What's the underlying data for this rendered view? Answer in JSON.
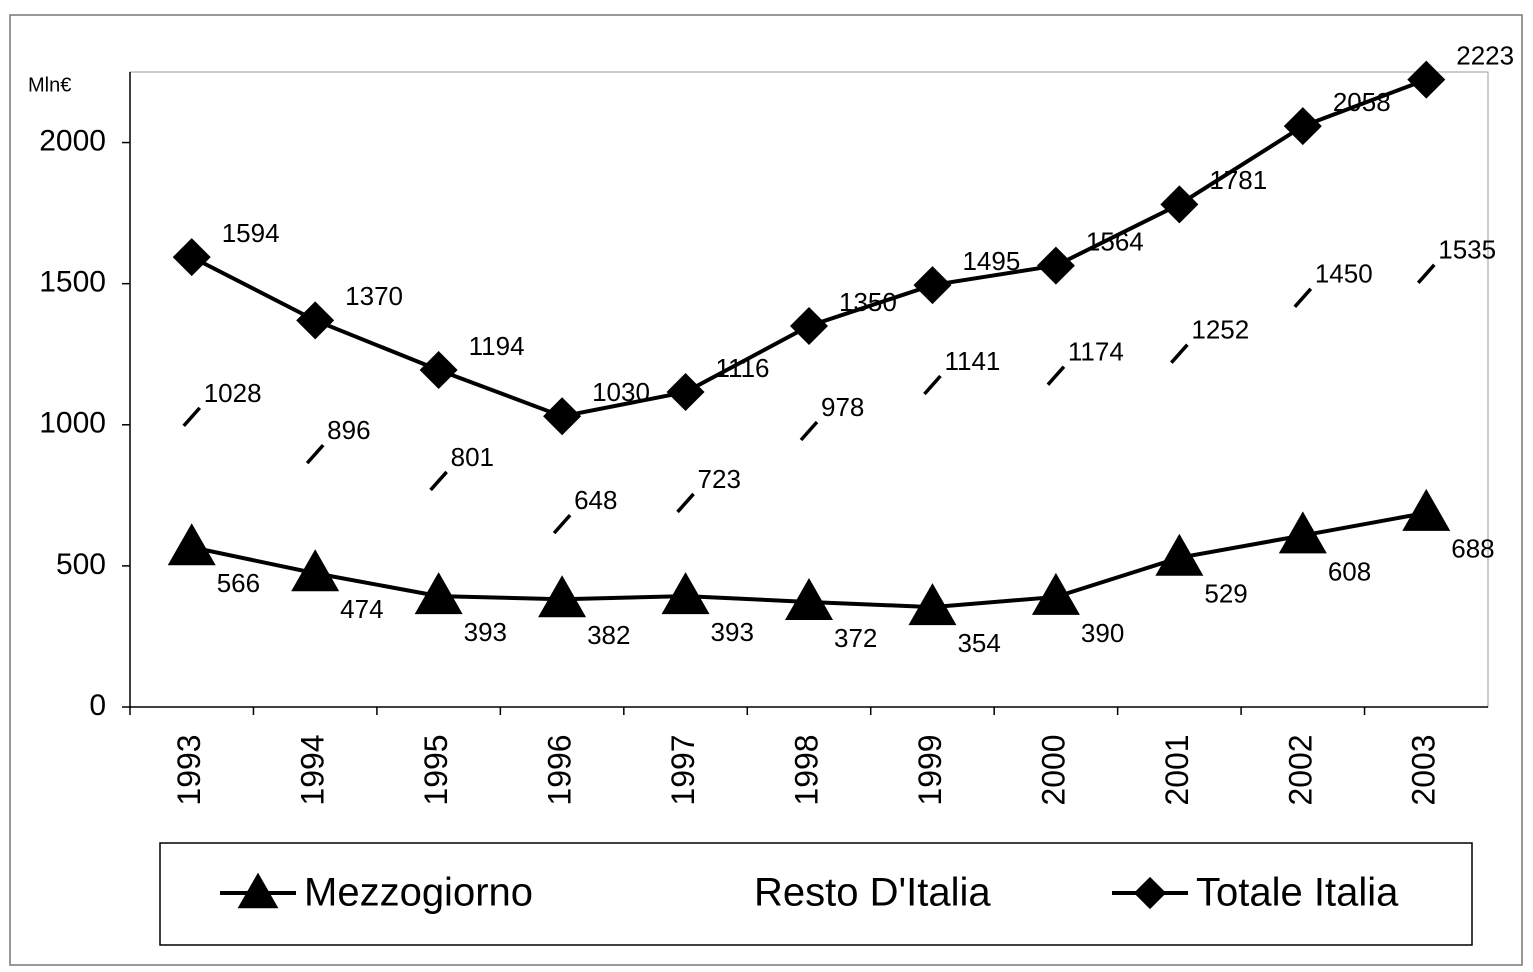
{
  "chart_data": {
    "type": "line",
    "y_label": "Mln€",
    "categories": [
      "1993",
      "1994",
      "1995",
      "1996",
      "1997",
      "1998",
      "1999",
      "2000",
      "2001",
      "2002",
      "2003"
    ],
    "series": [
      {
        "name": "Mezzogiorno",
        "color": "#000000",
        "marker": "triangle",
        "line": true,
        "values": [
          566,
          474,
          393,
          382,
          393,
          372,
          354,
          390,
          529,
          608,
          688
        ]
      },
      {
        "name": "Resto D'Italia",
        "color": "#000000",
        "marker": "dash",
        "line": false,
        "values": [
          1028,
          896,
          801,
          648,
          723,
          978,
          1141,
          1174,
          1252,
          1450,
          1535
        ]
      },
      {
        "name": "Totale Italia",
        "color": "#000000",
        "marker": "diamond",
        "line": true,
        "values": [
          1594,
          1370,
          1194,
          1030,
          1116,
          1350,
          1495,
          1564,
          1781,
          2058,
          2223
        ]
      }
    ],
    "ylim": [
      0,
      2250
    ],
    "yticks": [
      0,
      500,
      1000,
      1500,
      2000
    ],
    "grid": false,
    "legend": "bottom"
  }
}
